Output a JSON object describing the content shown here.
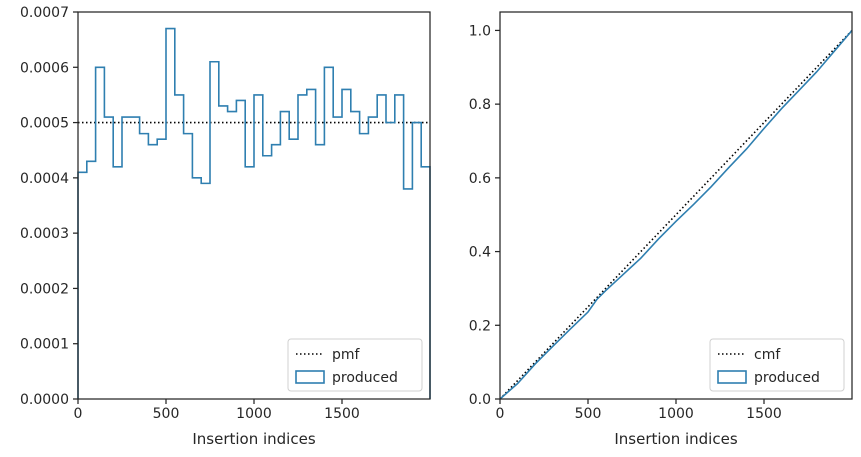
{
  "chart_data": [
    {
      "type": "histogram-step",
      "title": "",
      "xlabel": "Insertion indices",
      "ylabel": "",
      "xlim": [
        0,
        2000
      ],
      "ylim": [
        0,
        0.0007
      ],
      "x_ticks": [
        0,
        500,
        1000,
        1500
      ],
      "x_tick_labels": [
        "0",
        "500",
        "1000",
        "1500"
      ],
      "y_ticks": [
        0,
        0.0001,
        0.0002,
        0.0003,
        0.0004,
        0.0005,
        0.0006,
        0.0007
      ],
      "y_tick_labels": [
        "0.0000",
        "0.0001",
        "0.0002",
        "0.0003",
        "0.0004",
        "0.0005",
        "0.0006",
        "0.0007"
      ],
      "grid": false,
      "legend_position": "lower-right",
      "bin_width": 50,
      "series": [
        {
          "name": "pmf",
          "style": "dotted",
          "color": "#000000",
          "x": [
            0,
            2000
          ],
          "values": [
            0.0005,
            0.0005
          ]
        },
        {
          "name": "produced",
          "style": "step",
          "color": "#2f7fb0",
          "bin_edges": [
            0,
            50,
            100,
            150,
            200,
            250,
            300,
            350,
            400,
            450,
            500,
            550,
            600,
            650,
            700,
            750,
            800,
            850,
            900,
            950,
            1000,
            1050,
            1100,
            1150,
            1200,
            1250,
            1300,
            1350,
            1400,
            1450,
            1500,
            1550,
            1600,
            1650,
            1700,
            1750,
            1800,
            1850,
            1900,
            1950,
            2000
          ],
          "values": [
            0.00041,
            0.00043,
            0.0006,
            0.00051,
            0.00042,
            0.00051,
            0.00051,
            0.00048,
            0.00046,
            0.00047,
            0.00067,
            0.00055,
            0.00048,
            0.0004,
            0.00039,
            0.00061,
            0.00053,
            0.00052,
            0.00054,
            0.00042,
            0.00055,
            0.00044,
            0.00046,
            0.00052,
            0.00047,
            0.00055,
            0.00056,
            0.00046,
            0.0006,
            0.00051,
            0.00056,
            0.00052,
            0.00048,
            0.00051,
            0.00055,
            0.0005,
            0.00055,
            0.00038,
            0.0005,
            0.00042
          ]
        }
      ]
    },
    {
      "type": "line",
      "title": "",
      "xlabel": "Insertion indices",
      "ylabel": "",
      "xlim": [
        0,
        2000
      ],
      "ylim": [
        0,
        1.05
      ],
      "x_ticks": [
        0,
        500,
        1000,
        1500
      ],
      "x_tick_labels": [
        "0",
        "500",
        "1000",
        "1500"
      ],
      "y_ticks": [
        0,
        0.2,
        0.4,
        0.6,
        0.8,
        1.0
      ],
      "y_tick_labels": [
        "0.0",
        "0.2",
        "0.4",
        "0.6",
        "0.8",
        "1.0"
      ],
      "grid": false,
      "legend_position": "lower-right",
      "series": [
        {
          "name": "cmf",
          "style": "dotted",
          "color": "#000000",
          "x": [
            0,
            2000
          ],
          "values": [
            0,
            1.0
          ]
        },
        {
          "name": "produced",
          "style": "solid",
          "color": "#2f7fb0",
          "x": [
            0,
            100,
            200,
            300,
            400,
            500,
            550,
            600,
            700,
            800,
            900,
            1000,
            1100,
            1200,
            1300,
            1400,
            1500,
            1600,
            1700,
            1800,
            1900,
            2000
          ],
          "values": [
            0,
            0.042,
            0.095,
            0.143,
            0.19,
            0.236,
            0.27,
            0.294,
            0.338,
            0.382,
            0.434,
            0.482,
            0.528,
            0.576,
            0.628,
            0.678,
            0.734,
            0.788,
            0.838,
            0.888,
            0.944,
            1.0
          ]
        }
      ]
    }
  ]
}
